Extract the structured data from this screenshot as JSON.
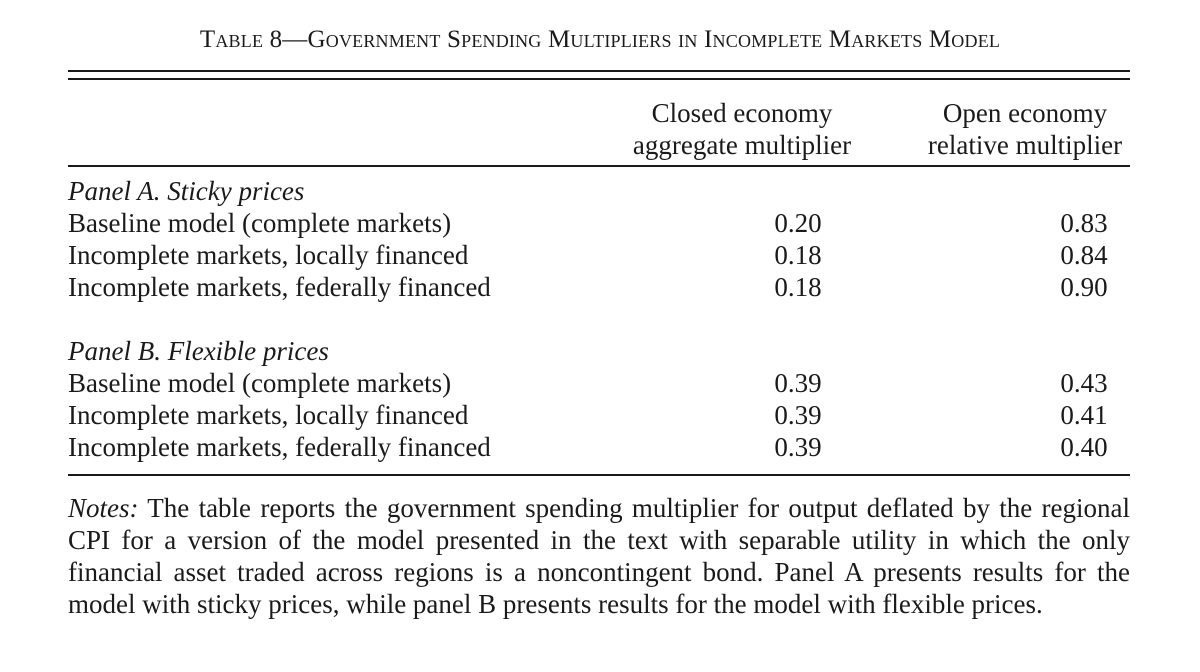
{
  "table": {
    "title": "Table 8—Government Spending Multipliers in Incomplete Markets Model",
    "columns": [
      {
        "line1": "Closed economy",
        "line2": "aggregate multiplier"
      },
      {
        "line1": "Open economy",
        "line2": "relative multiplier"
      }
    ],
    "panels": [
      {
        "title": "Panel A. Sticky prices",
        "rows": [
          {
            "label": "Baseline model (complete markets)",
            "closed": "0.20",
            "open": "0.83"
          },
          {
            "label": "Incomplete markets, locally financed",
            "closed": "0.18",
            "open": "0.84"
          },
          {
            "label": "Incomplete markets, federally financed",
            "closed": "0.18",
            "open": "0.90"
          }
        ]
      },
      {
        "title": "Panel B. Flexible prices",
        "rows": [
          {
            "label": "Baseline model (complete markets)",
            "closed": "0.39",
            "open": "0.43"
          },
          {
            "label": "Incomplete markets, locally financed",
            "closed": "0.39",
            "open": "0.41"
          },
          {
            "label": "Incomplete markets, federally financed",
            "closed": "0.39",
            "open": "0.40"
          }
        ]
      }
    ],
    "notes_lead": "Notes:",
    "notes_text": " The table reports the government spending multiplier for output deflated by the regional CPI for a version of the model presented in the text with separable utility in which the only financial asset traded across regions is a noncontingent bond. Panel A presents results for the model with sticky prices, while panel B presents results for the model with flexible prices."
  }
}
